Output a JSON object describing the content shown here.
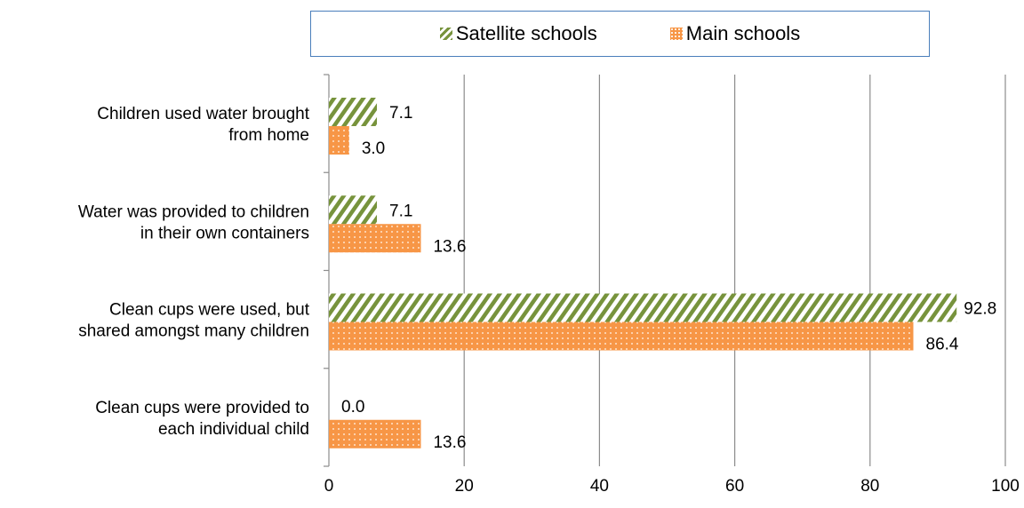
{
  "chart_data": {
    "type": "bar",
    "orientation": "horizontal",
    "categories": [
      [
        "Children used water brought",
        "from home"
      ],
      [
        "Water was provided to children",
        "in their own containers"
      ],
      [
        "Clean cups were used, but",
        "shared amongst many children"
      ],
      [
        "Clean cups were provided to",
        "each individual child"
      ]
    ],
    "series": [
      {
        "name": "Satellite schools",
        "values": [
          7.1,
          7.1,
          92.8,
          0.0
        ],
        "labels": [
          "7.1",
          "7.1",
          "92.8",
          "0.0"
        ],
        "color": "#77933c",
        "pattern": "diagonal-stripes"
      },
      {
        "name": "Main schools",
        "values": [
          3.0,
          13.6,
          86.4,
          13.6
        ],
        "labels": [
          "3.0",
          "13.6",
          "86.4",
          "13.6"
        ],
        "color": "#f79646",
        "pattern": "dotted"
      }
    ],
    "xlim": [
      0,
      100
    ],
    "xticks": [
      "0",
      "20",
      "40",
      "60",
      "80",
      "100"
    ],
    "grid": "vertical",
    "legend": "top"
  }
}
